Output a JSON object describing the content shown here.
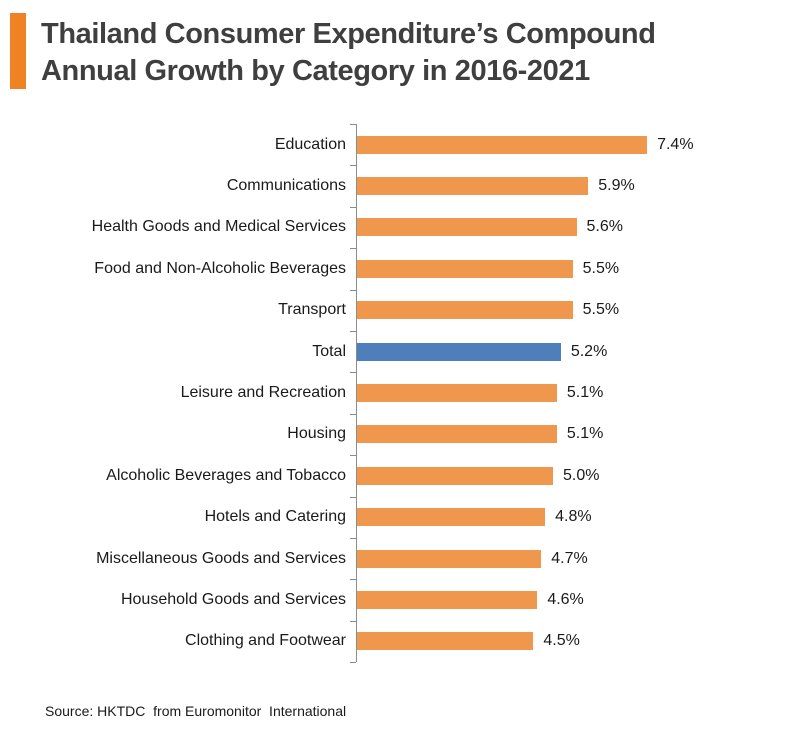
{
  "header": {
    "title_line1": "Thailand Consumer Expenditure’s Compound",
    "title_line2": "Annual Growth by Category in 2016-2021",
    "accent_color": "#F08223"
  },
  "chart_data": {
    "type": "bar",
    "orientation": "horizontal",
    "title": "Thailand Consumer Expenditure’s Compound Annual Growth by Category in 2016-2021",
    "categories": [
      "Education",
      "Communications",
      "Health Goods and Medical Services",
      "Food and Non-Alcoholic Beverages",
      "Transport",
      "Total",
      "Leisure and Recreation",
      "Housing",
      "Alcoholic Beverages and Tobacco",
      "Hotels and Catering",
      "Miscellaneous Goods and Services",
      "Household Goods and Services",
      "Clothing and Footwear"
    ],
    "values": [
      7.4,
      5.9,
      5.6,
      5.5,
      5.5,
      5.2,
      5.1,
      5.1,
      5.0,
      4.8,
      4.7,
      4.6,
      4.5
    ],
    "value_labels": [
      "7.4%",
      "5.9%",
      "5.6%",
      "5.5%",
      "5.5%",
      "5.2%",
      "5.1%",
      "5.1%",
      "5.0%",
      "4.8%",
      "4.7%",
      "4.6%",
      "4.5%"
    ],
    "highlight_category": "Total",
    "bar_color": "#F0974E",
    "highlight_color": "#4E7FBC",
    "axis_color": "#8C8C8C",
    "xlim": [
      0,
      7.4
    ],
    "grid": false,
    "legend": false,
    "xlabel": "",
    "ylabel": ""
  },
  "footer": {
    "source": "Source: HKTDC  from Euromonitor  International"
  }
}
